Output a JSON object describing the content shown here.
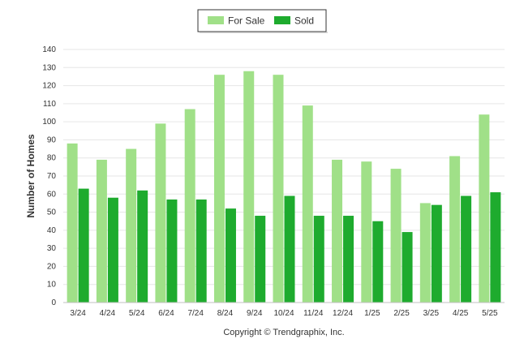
{
  "chart_data": {
    "type": "bar",
    "categories": [
      "3/24",
      "4/24",
      "5/24",
      "6/24",
      "7/24",
      "8/24",
      "9/24",
      "10/24",
      "11/24",
      "12/24",
      "1/25",
      "2/25",
      "3/25",
      "4/25",
      "5/25"
    ],
    "series": [
      {
        "name": "For Sale",
        "color": "#a0e088",
        "values": [
          88,
          79,
          85,
          99,
          107,
          126,
          128,
          126,
          109,
          79,
          78,
          74,
          55,
          81,
          104
        ]
      },
      {
        "name": "Sold",
        "color": "#1eab2e",
        "values": [
          63,
          58,
          62,
          57,
          57,
          52,
          48,
          59,
          48,
          48,
          45,
          39,
          54,
          59,
          61
        ]
      }
    ],
    "title": "",
    "xlabel": "",
    "ylabel": "Number of Homes",
    "ylim": [
      0,
      140
    ],
    "yticks": [
      0,
      10,
      20,
      30,
      40,
      50,
      60,
      70,
      80,
      90,
      100,
      110,
      120,
      130,
      140
    ],
    "grid": true,
    "legend_position": "top-center",
    "footer": "Copyright © Trendgraphix, Inc."
  }
}
